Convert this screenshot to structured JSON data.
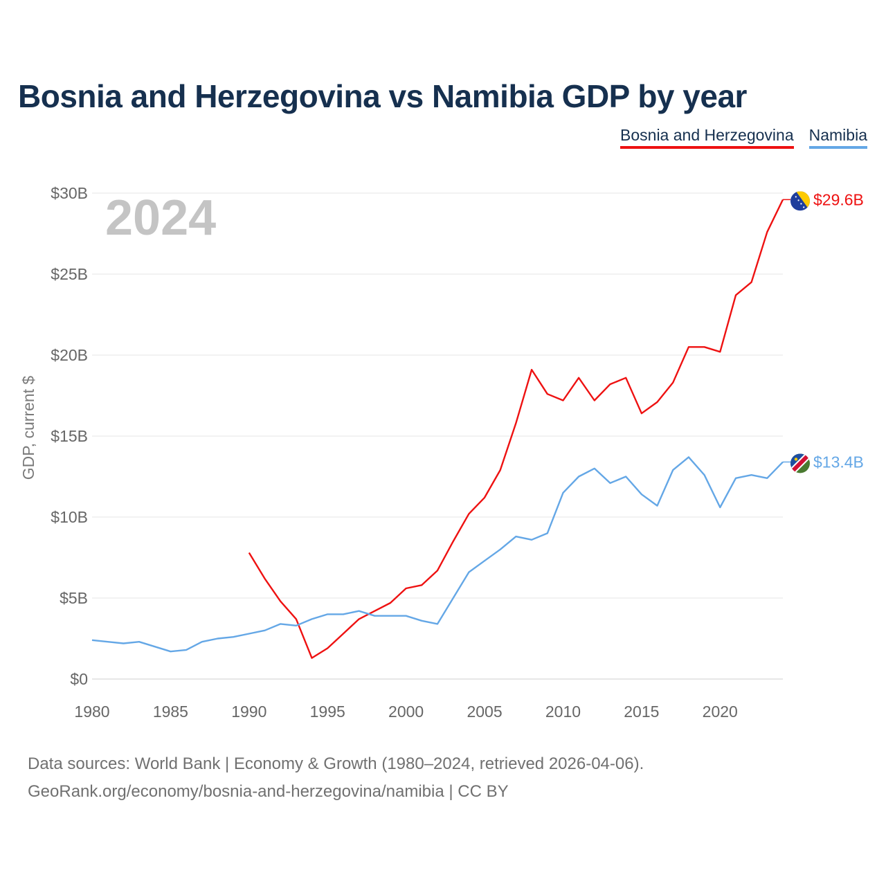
{
  "header": {
    "title": "Bosnia and Herzegovina vs Namibia GDP by year"
  },
  "legend": [
    {
      "label": "Bosnia and Herzegovina",
      "color": "#ee1111"
    },
    {
      "label": "Namibia",
      "color": "#64a7e6"
    }
  ],
  "chart_data": {
    "type": "line",
    "title": "Bosnia and Herzegovina vs Namibia GDP by year",
    "year_watermark": "2024",
    "xlabel": "",
    "ylabel": "GDP, current $",
    "xlim": [
      1980,
      2024
    ],
    "ylim": [
      0,
      30
    ],
    "y_unit": "billions USD",
    "grid": true,
    "x_ticks": [
      "1980",
      "1985",
      "1990",
      "1995",
      "2000",
      "2005",
      "2010",
      "2015",
      "2020"
    ],
    "y_ticks": [
      "$0",
      "$5B",
      "$10B",
      "$15B",
      "$20B",
      "$25B",
      "$30B"
    ],
    "series": [
      {
        "name": "Bosnia and Herzegovina",
        "color": "#ee1111",
        "end_label": "$29.6B",
        "flag_icon": "bosnia-flag-icon",
        "x": [
          1990,
          1991,
          1992,
          1993,
          1994,
          1995,
          1996,
          1997,
          1998,
          1999,
          2000,
          2001,
          2002,
          2003,
          2004,
          2005,
          2006,
          2007,
          2008,
          2009,
          2010,
          2011,
          2012,
          2013,
          2014,
          2015,
          2016,
          2017,
          2018,
          2019,
          2020,
          2021,
          2022,
          2023,
          2024
        ],
        "values": [
          7.8,
          6.2,
          4.8,
          3.7,
          1.3,
          1.9,
          2.8,
          3.7,
          4.2,
          4.7,
          5.6,
          5.8,
          6.7,
          8.5,
          10.2,
          11.2,
          12.9,
          15.8,
          19.1,
          17.6,
          17.2,
          18.6,
          17.2,
          18.2,
          18.6,
          16.4,
          17.1,
          18.3,
          20.5,
          20.5,
          20.2,
          23.7,
          24.5,
          27.6,
          29.6
        ]
      },
      {
        "name": "Namibia",
        "color": "#64a7e6",
        "end_label": "$13.4B",
        "flag_icon": "namibia-flag-icon",
        "x": [
          1980,
          1981,
          1982,
          1983,
          1984,
          1985,
          1986,
          1987,
          1988,
          1989,
          1990,
          1991,
          1992,
          1993,
          1994,
          1995,
          1996,
          1997,
          1998,
          1999,
          2000,
          2001,
          2002,
          2003,
          2004,
          2005,
          2006,
          2007,
          2008,
          2009,
          2010,
          2011,
          2012,
          2013,
          2014,
          2015,
          2016,
          2017,
          2018,
          2019,
          2020,
          2021,
          2022,
          2023,
          2024
        ],
        "values": [
          2.4,
          2.3,
          2.2,
          2.3,
          2.0,
          1.7,
          1.8,
          2.3,
          2.5,
          2.6,
          2.8,
          3.0,
          3.4,
          3.3,
          3.7,
          4.0,
          4.0,
          4.2,
          3.9,
          3.9,
          3.9,
          3.6,
          3.4,
          5.0,
          6.6,
          7.3,
          8.0,
          8.8,
          8.6,
          9.0,
          11.5,
          12.5,
          13.0,
          12.1,
          12.5,
          11.4,
          10.7,
          12.9,
          13.7,
          12.6,
          10.6,
          12.4,
          12.6,
          12.4,
          13.4
        ]
      }
    ]
  },
  "footer": {
    "sources": "Data sources: World Bank | Economy & Growth (1980–2024, retrieved 2026-04-06).",
    "url": "GeoRank.org/economy/bosnia-and-herzegovina/namibia | CC BY"
  }
}
